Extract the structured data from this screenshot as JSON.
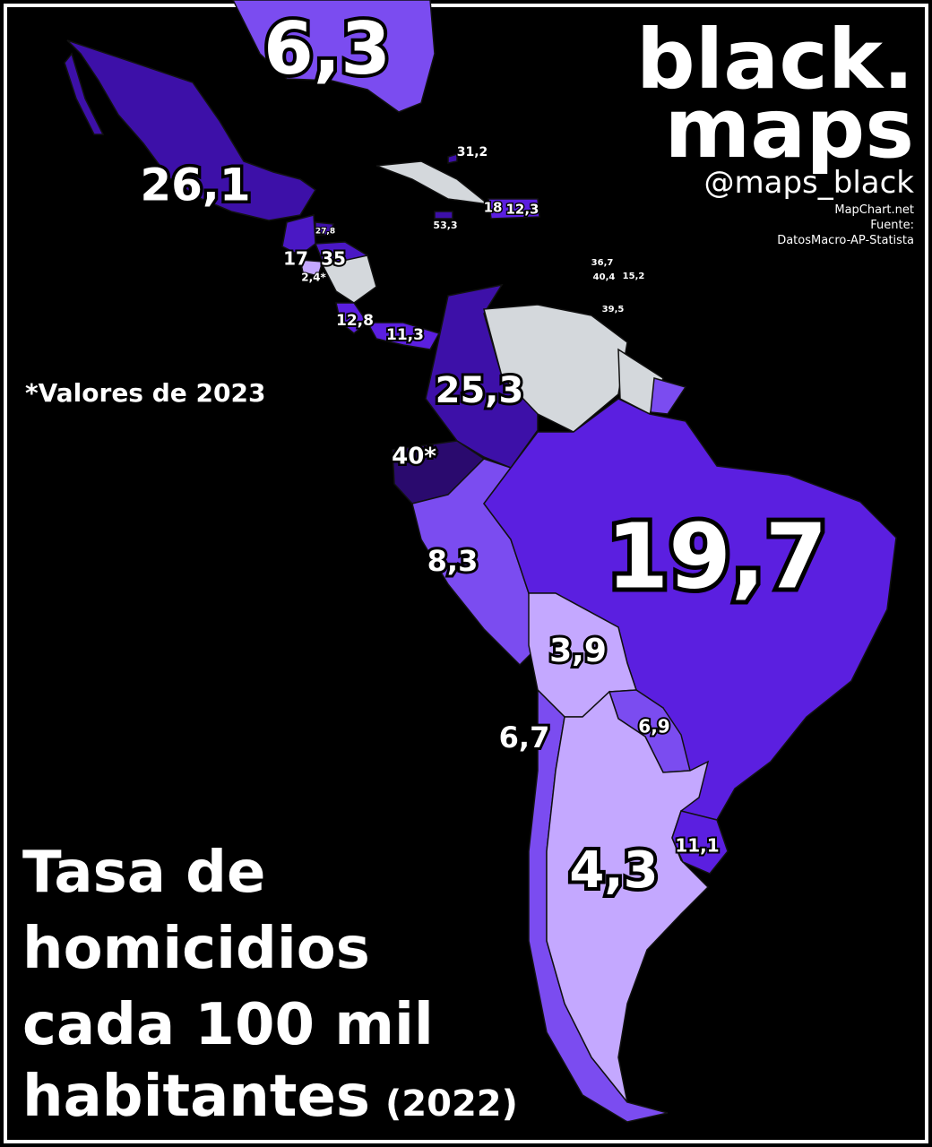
{
  "brand": {
    "line1": "black.",
    "line2": "maps",
    "handle": "@maps_black"
  },
  "source": {
    "tool": "MapChart.net",
    "label": "Fuente:",
    "text": "DatosMacro-AP-Statista"
  },
  "note": "*Valores de 2023",
  "title": {
    "lines": [
      "Tasa de",
      "homicidios",
      "cada 100 mil",
      "habitantes"
    ],
    "year": "(2022)"
  },
  "labels": [
    "6,3",
    "26,1",
    "31,2",
    "18",
    "12,3",
    "53,3",
    "27,8",
    "17",
    "35",
    "2,4*",
    "12,8",
    "11,3",
    "36,7",
    "40,4",
    "15,2",
    "39,5",
    "25,3",
    "40*",
    "19,7",
    "8,3",
    "3,9",
    "6,7",
    "6,9",
    "4,3",
    "11,1"
  ]
}
